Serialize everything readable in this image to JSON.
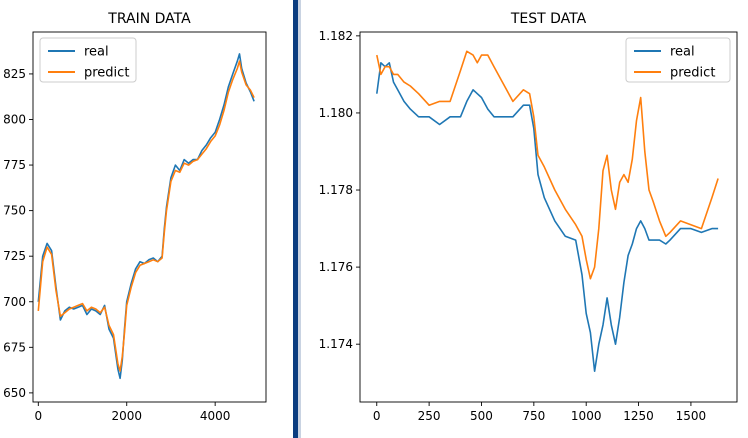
{
  "chart_data": [
    {
      "type": "line",
      "title": "TRAIN DATA",
      "xlabel": "",
      "ylabel": "",
      "xlim": [
        -120,
        5150
      ],
      "ylim": [
        645,
        848
      ],
      "xticks": [
        0,
        2000,
        4000
      ],
      "xtick_labels": [
        "0",
        "2000",
        "4000"
      ],
      "yticks": [
        650,
        675,
        700,
        725,
        750,
        775,
        800,
        825
      ],
      "ytick_labels": [
        "650",
        "675",
        "700",
        "725",
        "750",
        "775",
        "800",
        "825"
      ],
      "grid": false,
      "legend_position": "top-left",
      "series": [
        {
          "name": "real",
          "color": "#1f77b4",
          "x": [
            0,
            100,
            200,
            300,
            400,
            500,
            600,
            700,
            800,
            900,
            1000,
            1100,
            1200,
            1300,
            1400,
            1500,
            1600,
            1700,
            1800,
            1850,
            1900,
            1950,
            2000,
            2100,
            2200,
            2300,
            2400,
            2500,
            2600,
            2700,
            2800,
            2850,
            2900,
            3000,
            3100,
            3200,
            3300,
            3400,
            3500,
            3600,
            3700,
            3800,
            3900,
            4000,
            4100,
            4200,
            4300,
            4400,
            4500,
            4550,
            4600,
            4700,
            4800,
            4880
          ],
          "y": [
            700,
            725,
            732,
            728,
            708,
            690,
            695,
            697,
            696,
            697,
            698,
            693,
            696,
            695,
            693,
            698,
            685,
            680,
            663,
            658,
            668,
            685,
            700,
            710,
            718,
            722,
            721,
            723,
            724,
            722,
            725,
            740,
            752,
            768,
            775,
            772,
            778,
            776,
            778,
            778,
            783,
            786,
            790,
            793,
            800,
            808,
            818,
            825,
            832,
            836,
            828,
            820,
            815,
            810
          ]
        },
        {
          "name": "predict",
          "color": "#ff7f0e",
          "x": [
            0,
            100,
            200,
            300,
            400,
            500,
            600,
            700,
            800,
            900,
            1000,
            1100,
            1200,
            1300,
            1400,
            1500,
            1600,
            1700,
            1800,
            1850,
            1900,
            1950,
            2000,
            2100,
            2200,
            2300,
            2400,
            2500,
            2600,
            2700,
            2800,
            2850,
            2900,
            3000,
            3100,
            3200,
            3300,
            3400,
            3500,
            3600,
            3700,
            3800,
            3900,
            4000,
            4100,
            4200,
            4300,
            4400,
            4500,
            4550,
            4600,
            4700,
            4800,
            4880
          ],
          "y": [
            695,
            722,
            730,
            726,
            706,
            692,
            694,
            696,
            697,
            698,
            699,
            695,
            697,
            696,
            694,
            697,
            687,
            682,
            666,
            662,
            670,
            683,
            698,
            708,
            716,
            720,
            721,
            722,
            723,
            722,
            724,
            738,
            750,
            766,
            772,
            771,
            776,
            775,
            777,
            778,
            781,
            784,
            788,
            791,
            797,
            805,
            815,
            822,
            828,
            832,
            826,
            819,
            816,
            812
          ]
        }
      ]
    },
    {
      "type": "line",
      "title": "TEST DATA",
      "xlabel": "",
      "ylabel": "",
      "xlim": [
        -80,
        1720
      ],
      "ylim": [
        1.1725,
        1.1821
      ],
      "xticks": [
        0,
        250,
        500,
        750,
        1000,
        1250,
        1500
      ],
      "xtick_labels": [
        "0",
        "250",
        "500",
        "750",
        "1000",
        "1250",
        "1500"
      ],
      "yticks": [
        1.174,
        1.176,
        1.178,
        1.18,
        1.182
      ],
      "ytick_labels": [
        "1.174",
        "1.176",
        "1.178",
        "1.180",
        "1.182"
      ],
      "grid": false,
      "legend_position": "top-right",
      "series": [
        {
          "name": "real",
          "color": "#1f77b4",
          "x": [
            0,
            20,
            40,
            60,
            80,
            100,
            130,
            160,
            200,
            250,
            300,
            350,
            400,
            430,
            460,
            480,
            500,
            530,
            560,
            600,
            650,
            700,
            730,
            750,
            770,
            800,
            850,
            900,
            950,
            980,
            1000,
            1020,
            1040,
            1060,
            1080,
            1100,
            1120,
            1140,
            1160,
            1180,
            1200,
            1220,
            1240,
            1260,
            1280,
            1300,
            1320,
            1350,
            1380,
            1400,
            1450,
            1500,
            1550,
            1600,
            1630
          ],
          "y": [
            1.1805,
            1.1813,
            1.1812,
            1.1813,
            1.1808,
            1.1806,
            1.1803,
            1.1801,
            1.1799,
            1.1799,
            1.1797,
            1.1799,
            1.1799,
            1.1803,
            1.1806,
            1.1805,
            1.1804,
            1.1801,
            1.1799,
            1.1799,
            1.1799,
            1.1802,
            1.1802,
            1.1796,
            1.1784,
            1.1778,
            1.1772,
            1.1768,
            1.1767,
            1.1758,
            1.1748,
            1.1743,
            1.1733,
            1.174,
            1.1745,
            1.1752,
            1.1745,
            1.174,
            1.1747,
            1.1756,
            1.1763,
            1.1766,
            1.177,
            1.1772,
            1.177,
            1.1767,
            1.1767,
            1.1767,
            1.1766,
            1.1767,
            1.177,
            1.177,
            1.1769,
            1.177,
            1.177
          ]
        },
        {
          "name": "predict",
          "color": "#ff7f0e",
          "x": [
            0,
            20,
            40,
            60,
            80,
            100,
            130,
            160,
            200,
            250,
            300,
            350,
            400,
            430,
            460,
            480,
            500,
            530,
            560,
            600,
            650,
            700,
            730,
            750,
            770,
            800,
            850,
            900,
            950,
            980,
            1000,
            1020,
            1040,
            1060,
            1080,
            1100,
            1120,
            1140,
            1160,
            1180,
            1200,
            1220,
            1240,
            1260,
            1280,
            1300,
            1320,
            1350,
            1380,
            1400,
            1450,
            1500,
            1550,
            1600,
            1630
          ],
          "y": [
            1.1815,
            1.181,
            1.1812,
            1.1812,
            1.181,
            1.181,
            1.1808,
            1.1807,
            1.1805,
            1.1802,
            1.1803,
            1.1803,
            1.1811,
            1.1816,
            1.1815,
            1.1813,
            1.1815,
            1.1815,
            1.1812,
            1.1808,
            1.1803,
            1.1806,
            1.1805,
            1.1799,
            1.1789,
            1.1786,
            1.178,
            1.1775,
            1.1771,
            1.1768,
            1.1762,
            1.1757,
            1.176,
            1.177,
            1.1785,
            1.1789,
            1.178,
            1.1775,
            1.1782,
            1.1784,
            1.1782,
            1.1788,
            1.1798,
            1.1804,
            1.179,
            1.178,
            1.1777,
            1.1772,
            1.1768,
            1.1769,
            1.1772,
            1.1771,
            1.177,
            1.1778,
            1.1783
          ]
        }
      ]
    }
  ]
}
